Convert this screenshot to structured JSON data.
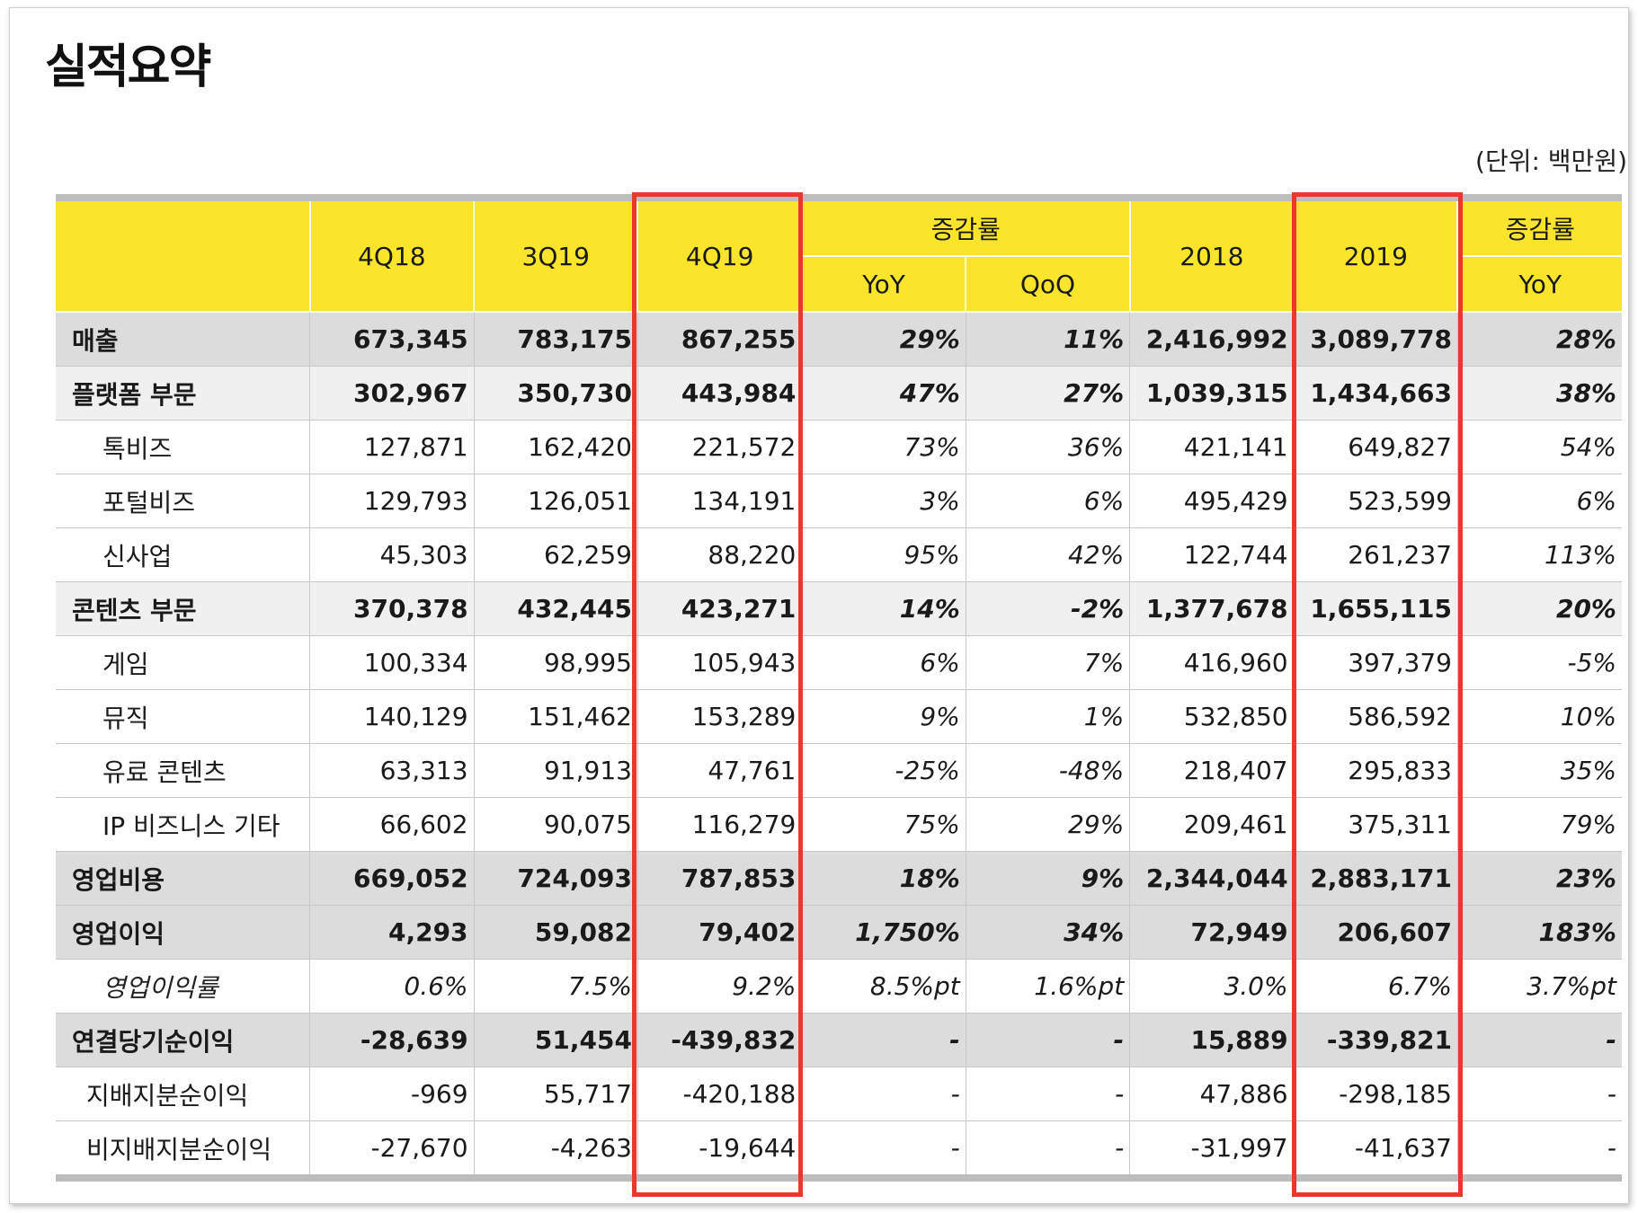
{
  "title": "실적요약",
  "unit": "(단위: 백만원)",
  "header": {
    "q1": "4Q18",
    "q2": "3Q19",
    "q3": "4Q19",
    "change_group": "증감률",
    "yoy": "YoY",
    "qoq": "QoQ",
    "y1": "2018",
    "y2": "2019",
    "change_group2": "증감률",
    "yoy2": "YoY"
  },
  "rows": [
    {
      "label": "매출",
      "values": [
        "673,345",
        "783,175",
        "867,255",
        "29%",
        "11%",
        "2,416,992",
        "3,089,778",
        "28%"
      ]
    },
    {
      "label": "플랫폼 부문",
      "values": [
        "302,967",
        "350,730",
        "443,984",
        "47%",
        "27%",
        "1,039,315",
        "1,434,663",
        "38%"
      ]
    },
    {
      "label": "톡비즈",
      "values": [
        "127,871",
        "162,420",
        "221,572",
        "73%",
        "36%",
        "421,141",
        "649,827",
        "54%"
      ]
    },
    {
      "label": "포털비즈",
      "values": [
        "129,793",
        "126,051",
        "134,191",
        "3%",
        "6%",
        "495,429",
        "523,599",
        "6%"
      ]
    },
    {
      "label": "신사업",
      "values": [
        "45,303",
        "62,259",
        "88,220",
        "95%",
        "42%",
        "122,744",
        "261,237",
        "113%"
      ]
    },
    {
      "label": "콘텐츠 부문",
      "values": [
        "370,378",
        "432,445",
        "423,271",
        "14%",
        "-2%",
        "1,377,678",
        "1,655,115",
        "20%"
      ]
    },
    {
      "label": "게임",
      "values": [
        "100,334",
        "98,995",
        "105,943",
        "6%",
        "7%",
        "416,960",
        "397,379",
        "-5%"
      ]
    },
    {
      "label": "뮤직",
      "values": [
        "140,129",
        "151,462",
        "153,289",
        "9%",
        "1%",
        "532,850",
        "586,592",
        "10%"
      ]
    },
    {
      "label": "유료 콘텐츠",
      "values": [
        "63,313",
        "91,913",
        "47,761",
        "-25%",
        "-48%",
        "218,407",
        "295,833",
        "35%"
      ]
    },
    {
      "label": "IP 비즈니스 기타",
      "values": [
        "66,602",
        "90,075",
        "116,279",
        "75%",
        "29%",
        "209,461",
        "375,311",
        "79%"
      ]
    },
    {
      "label": "영업비용",
      "values": [
        "669,052",
        "724,093",
        "787,853",
        "18%",
        "9%",
        "2,344,044",
        "2,883,171",
        "23%"
      ]
    },
    {
      "label": "영업이익",
      "values": [
        "4,293",
        "59,082",
        "79,402",
        "1,750%",
        "34%",
        "72,949",
        "206,607",
        "183%"
      ]
    },
    {
      "label": "영업이익률",
      "values": [
        "0.6%",
        "7.5%",
        "9.2%",
        "8.5%pt",
        "1.6%pt",
        "3.0%",
        "6.7%",
        "3.7%pt"
      ]
    },
    {
      "label": "연결당기순이익",
      "values": [
        "-28,639",
        "51,454",
        "-439,832",
        "-",
        "-",
        "15,889",
        "-339,821",
        "-"
      ]
    },
    {
      "label": "지배지분순이익",
      "values": [
        "-969",
        "55,717",
        "-420,188",
        "-",
        "-",
        "47,886",
        "-298,185",
        "-"
      ]
    },
    {
      "label": "비지배지분순이익",
      "values": [
        "-27,670",
        "-4,263",
        "-19,644",
        "-",
        "-",
        "-31,997",
        "-41,637",
        "-"
      ]
    }
  ],
  "highlight_color": "#e8392a",
  "header_color": "#fbe52c"
}
